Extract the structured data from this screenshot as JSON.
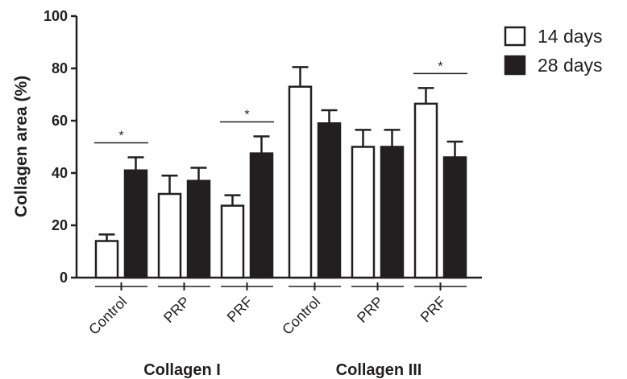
{
  "chart_data": {
    "type": "bar",
    "ylabel": "Collagen area (%)",
    "ylim": [
      0,
      100
    ],
    "yticks": [
      "0",
      "20",
      "40",
      "60",
      "80",
      "100"
    ],
    "groups": [
      {
        "label": "Collagen I",
        "categories": [
          "Control",
          "PRP",
          "PRF"
        ]
      },
      {
        "label": "Collagen III",
        "categories": [
          "Control",
          "PRP",
          "PRF"
        ]
      }
    ],
    "series": [
      {
        "name": "14 days",
        "fill": "#ffffff",
        "values": [
          14,
          32,
          27.5,
          73,
          50,
          66.5
        ],
        "errors": [
          2.5,
          7,
          4,
          7.5,
          6.5,
          6
        ]
      },
      {
        "name": "28 days",
        "fill": "#231f20",
        "values": [
          41,
          37,
          47.5,
          59,
          50,
          46
        ],
        "errors": [
          5,
          5,
          6.5,
          5,
          6.5,
          6
        ]
      }
    ],
    "significance": [
      {
        "group": 0,
        "category": 0,
        "label": "*"
      },
      {
        "group": 0,
        "category": 2,
        "label": "*"
      },
      {
        "group": 1,
        "category": 2,
        "label": "*"
      }
    ],
    "legend_position": "top-right",
    "grid": false
  }
}
